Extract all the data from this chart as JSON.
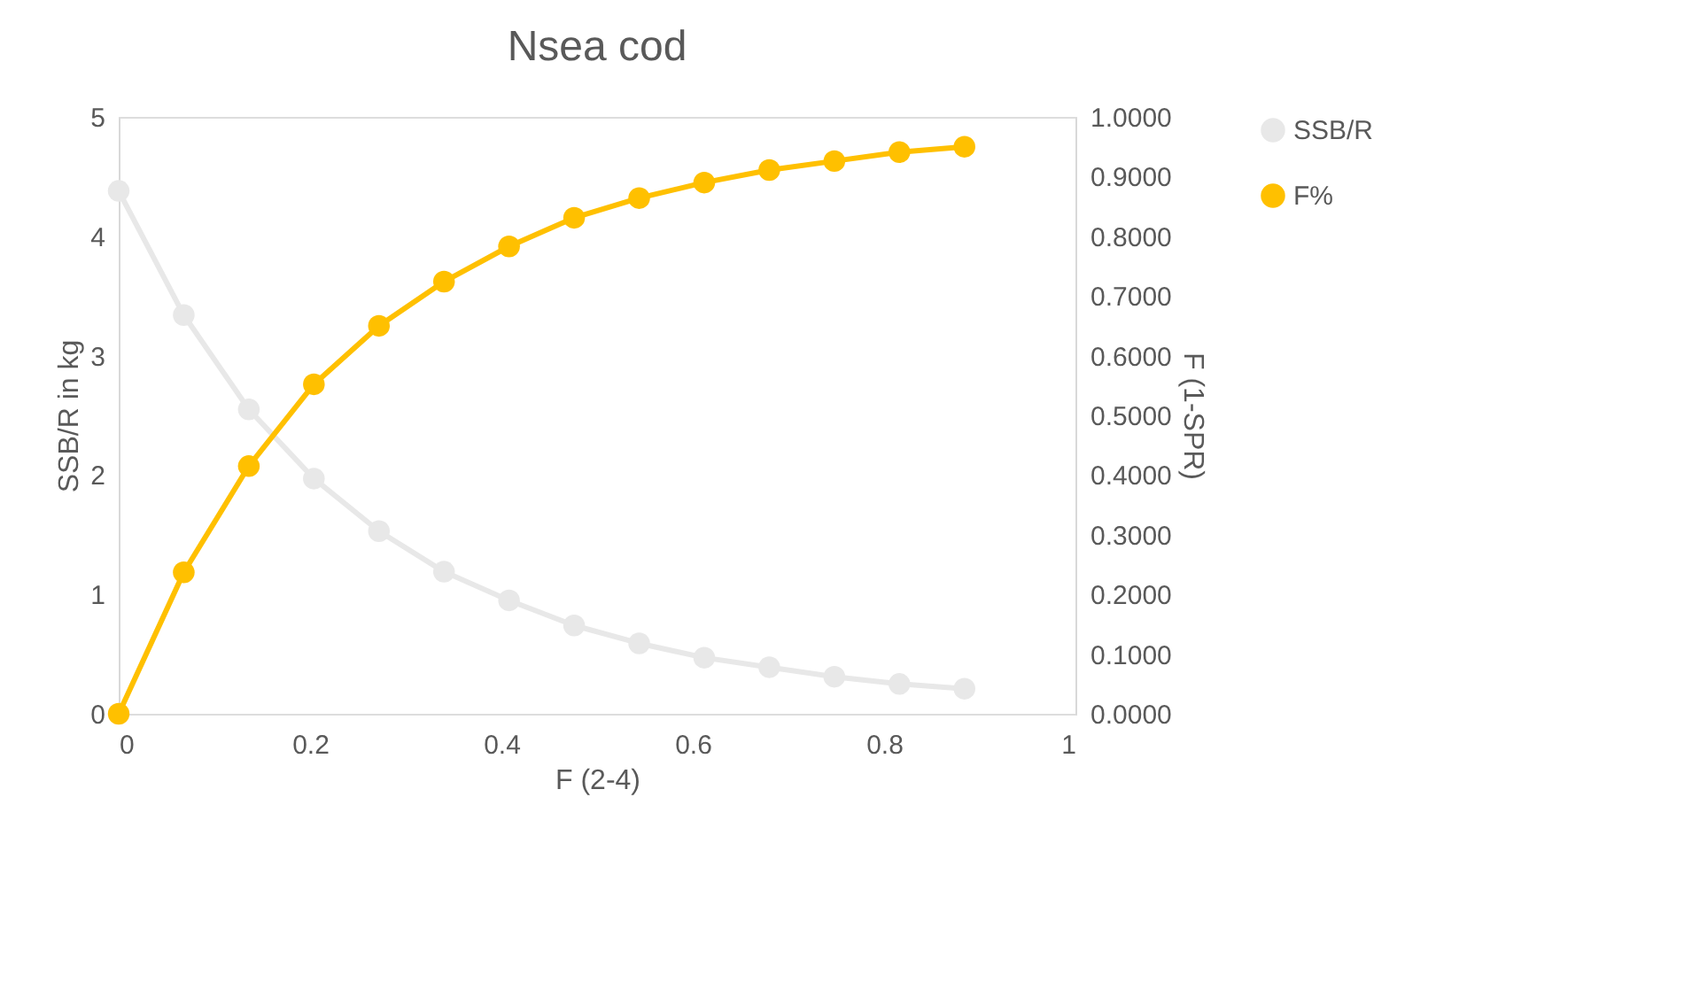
{
  "chart_data": {
    "type": "line",
    "title": "Nsea cod",
    "xlabel": "F (2-4)",
    "ylabel": "SSB/R in kg",
    "y2label": "F (1-SPR)",
    "x": [
      0,
      0.068,
      0.136,
      0.204,
      0.272,
      0.34,
      0.408,
      0.476,
      0.544,
      0.612,
      0.68,
      0.748,
      0.816,
      0.884
    ],
    "series": [
      {
        "name": "SSB/R",
        "color": "#e8e8e8",
        "values": [
          4.38,
          3.34,
          2.55,
          1.97,
          1.53,
          1.19,
          0.95,
          0.74,
          0.59,
          0.47,
          0.39,
          0.31,
          0.25,
          0.21
        ]
      },
      {
        "name": "F%",
        "color": "#ffc000",
        "axis": "y2",
        "values": [
          0,
          0.237,
          0.415,
          0.552,
          0.65,
          0.724,
          0.783,
          0.831,
          0.864,
          0.89,
          0.911,
          0.926,
          0.941,
          0.95
        ]
      }
    ],
    "xlim": [
      0,
      1
    ],
    "xticks": [
      0,
      0.2,
      0.4,
      0.6,
      0.8,
      1
    ],
    "ylim": [
      0,
      5
    ],
    "yticks": [
      0,
      1,
      2,
      3,
      4,
      5
    ],
    "y2lim": [
      0,
      1
    ],
    "y2ticks": [
      {
        "value": 0,
        "label": "0.0000"
      },
      {
        "value": 0.1,
        "label": "0.1000"
      },
      {
        "value": 0.2,
        "label": "0.2000"
      },
      {
        "value": 0.3,
        "label": "0.3000"
      },
      {
        "value": 0.4,
        "label": "0.4000"
      },
      {
        "value": 0.5,
        "label": "0.5000"
      },
      {
        "value": 0.6,
        "label": "0.6000"
      },
      {
        "value": 0.7,
        "label": "0.7000"
      },
      {
        "value": 0.8,
        "label": "0.8000"
      },
      {
        "value": 0.9,
        "label": "0.9000"
      },
      {
        "value": 1,
        "label": "1.0000"
      }
    ],
    "grid": false,
    "legend": "right",
    "marker": "circle",
    "line_style": "solid"
  }
}
